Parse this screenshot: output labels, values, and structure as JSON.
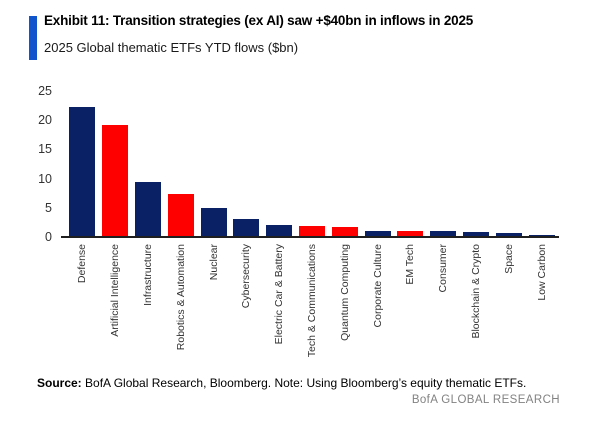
{
  "header": {
    "exhibit_title": "Exhibit 11: Transition strategies (ex AI) saw +$40bn in inflows in 2025",
    "subtitle": "2025 Global thematic ETFs YTD flows ($bn)"
  },
  "chart_data": {
    "type": "bar",
    "title": "2025 Global thematic ETFs YTD flows ($bn)",
    "categories": [
      "Defense",
      "Artificial Intelligence",
      "Infrastructure",
      "Robotics & Automation",
      "Nuclear",
      "Cybersecurity",
      "Electric Car & Battery",
      "Tech & Communications",
      "Quantum Computing",
      "Corporate Culture",
      "EM Tech",
      "Consumer",
      "Blockchain & Crypto",
      "Space",
      "Low Carbon"
    ],
    "values": [
      22.3,
      19.2,
      9.4,
      7.3,
      5.0,
      3.0,
      2.1,
      1.8,
      1.7,
      1.1,
      1.0,
      1.0,
      0.9,
      0.6,
      0.3
    ],
    "bar_colors": [
      "navy",
      "red",
      "navy",
      "red",
      "navy",
      "navy",
      "navy",
      "red",
      "red",
      "navy",
      "red",
      "navy",
      "navy",
      "navy",
      "navy"
    ],
    "color_map": {
      "navy": "#0A2166",
      "red": "#FE0000"
    },
    "xlabel": "",
    "ylabel": "",
    "ylim": [
      0,
      25
    ],
    "yticks": [
      0,
      5,
      10,
      15,
      20,
      25
    ],
    "grid": false,
    "legend": false,
    "x_tick_rotation_deg": 90
  },
  "colors": {
    "accent_blue": "#1155CC",
    "axis_line": "#1F1F1F",
    "brand_gray": "#828282"
  },
  "footer": {
    "source_label": "Source:",
    "source_text": " BofA Global Research, Bloomberg. Note: Using Bloomberg’s equity thematic ETFs.",
    "brand": "BofA GLOBAL RESEARCH"
  }
}
